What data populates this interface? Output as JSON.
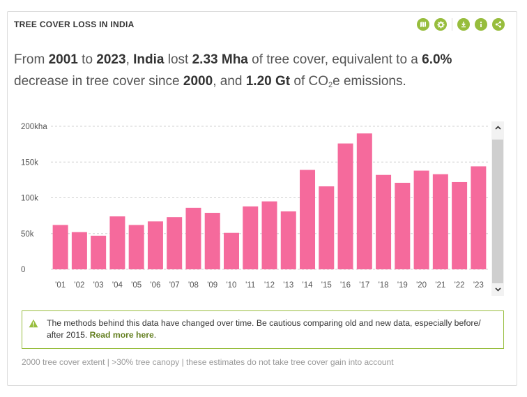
{
  "widget": {
    "title": "TREE COVER LOSS IN INDIA",
    "accent_color": "#97bd3d",
    "toolbar_icons": [
      "map-icon",
      "settings-icon",
      "download-icon",
      "info-icon",
      "share-icon"
    ]
  },
  "summary": {
    "t1": "From ",
    "start_year": "2001",
    "t2": " to ",
    "end_year": "2023",
    "t3": ", ",
    "country": "India",
    "t4": " lost ",
    "loss": "2.33 Mha",
    "t5": " of tree cover, equivalent to a ",
    "percent": "6.0%",
    "t6": " decrease in tree cover since ",
    "baseline_year": "2000",
    "t7": ", and ",
    "emissions": "1.20 Gt",
    "t8": " of CO",
    "sub": "2",
    "t9": "e emissions."
  },
  "chart_data": {
    "type": "bar",
    "categories": [
      "'01",
      "'02",
      "'03",
      "'04",
      "'05",
      "'06",
      "'07",
      "'08",
      "'09",
      "'10",
      "'11",
      "'12",
      "'13",
      "'14",
      "'15",
      "'16",
      "'17",
      "'18",
      "'19",
      "'20",
      "'21",
      "'22",
      "'23"
    ],
    "values": [
      62000,
      52000,
      47000,
      74000,
      62000,
      67000,
      73000,
      86000,
      79000,
      51000,
      88000,
      95000,
      81000,
      139000,
      116000,
      176000,
      190000,
      132000,
      121000,
      138000,
      133000,
      122000,
      144000
    ],
    "yticks": [
      "0",
      "50k",
      "100k",
      "150k",
      "200kha"
    ],
    "ylim": [
      0,
      200000
    ],
    "bar_color": "#f56a9c",
    "grid": "dashed horizontal"
  },
  "warning": {
    "text": "The methods behind this data have changed over time. Be cautious comparing old and new data, especially before/ after 2015. ",
    "link": "Read more here",
    "after_link": "."
  },
  "footnote": "2000 tree cover extent | >30% tree canopy | these estimates do not take tree cover gain into account"
}
